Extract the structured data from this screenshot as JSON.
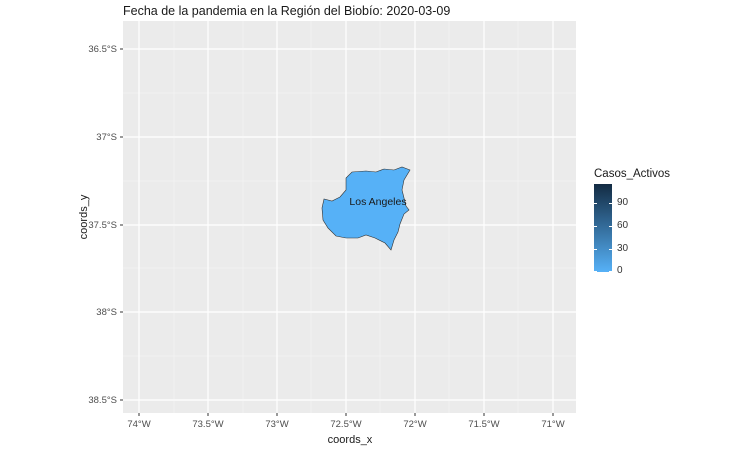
{
  "title": "Fecha de la pandemia en la Región del Biobío: 2020-03-09",
  "x_axis": {
    "label": "coords_x",
    "ticks": [
      "74°W",
      "73.5°W",
      "73°W",
      "72.5°W",
      "72°W",
      "71.5°W",
      "71°W"
    ]
  },
  "y_axis": {
    "label": "coords_y",
    "ticks": [
      "36.5°S",
      "37°S",
      "37.5°S",
      "38°S",
      "38.5°S"
    ]
  },
  "region": {
    "label": "Los Angeles",
    "fill_color": "#56B1F7",
    "outline_color": "#333333"
  },
  "legend": {
    "title": "Casos_Activos",
    "labels": [
      "90",
      "60",
      "30",
      "0"
    ],
    "color_low": "#56B1F7",
    "color_high": "#132B43"
  },
  "panel_background": "#EBEBEB"
}
